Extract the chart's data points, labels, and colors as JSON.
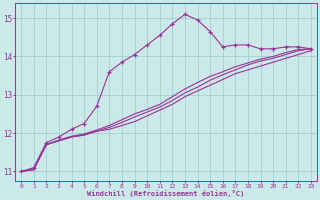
{
  "title": "",
  "xlabel": "Windchill (Refroidissement éolien,°C)",
  "ylabel": "",
  "background_color": "#cce9e9",
  "line_color": "#993399",
  "grid_color": "#99cccc",
  "x_values": [
    0,
    1,
    2,
    3,
    4,
    5,
    6,
    7,
    8,
    9,
    10,
    11,
    12,
    13,
    14,
    15,
    16,
    17,
    18,
    19,
    20,
    21,
    22,
    23
  ],
  "series1": [
    11.0,
    11.1,
    11.75,
    11.9,
    12.1,
    12.25,
    12.7,
    13.6,
    13.85,
    14.05,
    14.3,
    14.55,
    14.85,
    15.1,
    14.95,
    14.65,
    14.25,
    14.3,
    14.3,
    14.2,
    14.2,
    14.25,
    14.25,
    14.2
  ],
  "series2": [
    11.0,
    11.05,
    11.7,
    11.8,
    11.9,
    11.95,
    12.05,
    12.1,
    12.2,
    12.3,
    12.45,
    12.6,
    12.75,
    12.95,
    13.1,
    13.25,
    13.4,
    13.55,
    13.65,
    13.75,
    13.85,
    13.95,
    14.05,
    14.15
  ],
  "series3": [
    11.0,
    11.05,
    11.7,
    11.8,
    11.9,
    11.95,
    12.05,
    12.15,
    12.28,
    12.42,
    12.55,
    12.68,
    12.85,
    13.05,
    13.2,
    13.38,
    13.52,
    13.65,
    13.78,
    13.88,
    13.95,
    14.05,
    14.15,
    14.2
  ],
  "series4": [
    11.0,
    11.05,
    11.7,
    11.82,
    11.92,
    11.98,
    12.08,
    12.2,
    12.35,
    12.5,
    12.62,
    12.75,
    12.95,
    13.15,
    13.32,
    13.48,
    13.6,
    13.73,
    13.83,
    13.93,
    14.0,
    14.1,
    14.18,
    14.2
  ],
  "ylim": [
    10.75,
    15.4
  ],
  "xlim": [
    -0.5,
    23.5
  ],
  "yticks": [
    11,
    12,
    13,
    14,
    15
  ],
  "xticks": [
    0,
    1,
    2,
    3,
    4,
    5,
    6,
    7,
    8,
    9,
    10,
    11,
    12,
    13,
    14,
    15,
    16,
    17,
    18,
    19,
    20,
    21,
    22,
    23
  ]
}
